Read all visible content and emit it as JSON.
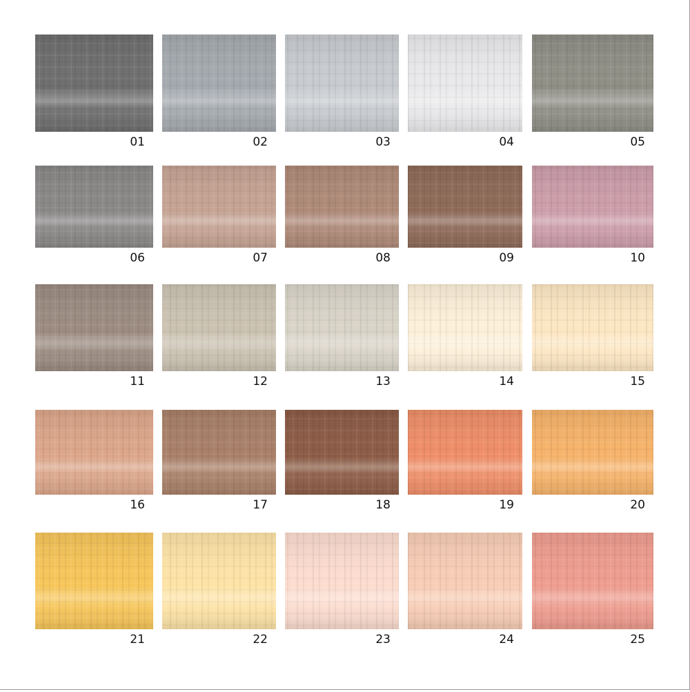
{
  "swatches": [
    {
      "label": "01",
      "color": "#6f6f6f"
    },
    {
      "label": "02",
      "color": "#a5aaaf"
    },
    {
      "label": "03",
      "color": "#c8cbcf"
    },
    {
      "label": "04",
      "color": "#e9e9eb"
    },
    {
      "label": "05",
      "color": "#8f8f86"
    },
    {
      "label": "06",
      "color": "#8a8787"
    },
    {
      "label": "07",
      "color": "#c5a393"
    },
    {
      "label": "08",
      "color": "#ae8977"
    },
    {
      "label": "09",
      "color": "#8e6a58"
    },
    {
      "label": "10",
      "color": "#cc9daa"
    },
    {
      "label": "11",
      "color": "#9c8c82"
    },
    {
      "label": "12",
      "color": "#cbc2b2"
    },
    {
      "label": "13",
      "color": "#d9d4c8"
    },
    {
      "label": "14",
      "color": "#fdf0d9"
    },
    {
      "label": "15",
      "color": "#fde7c3"
    },
    {
      "label": "16",
      "color": "#dca68a"
    },
    {
      "label": "17",
      "color": "#a98068"
    },
    {
      "label": "18",
      "color": "#8c5c46"
    },
    {
      "label": "19",
      "color": "#ef8e68"
    },
    {
      "label": "20",
      "color": "#f6b36a"
    },
    {
      "label": "21",
      "color": "#f7c65a"
    },
    {
      "label": "22",
      "color": "#fde3a6"
    },
    {
      "label": "23",
      "color": "#fcdccf"
    },
    {
      "label": "24",
      "color": "#f8cdb5"
    },
    {
      "label": "25",
      "color": "#ef9d8f"
    }
  ]
}
